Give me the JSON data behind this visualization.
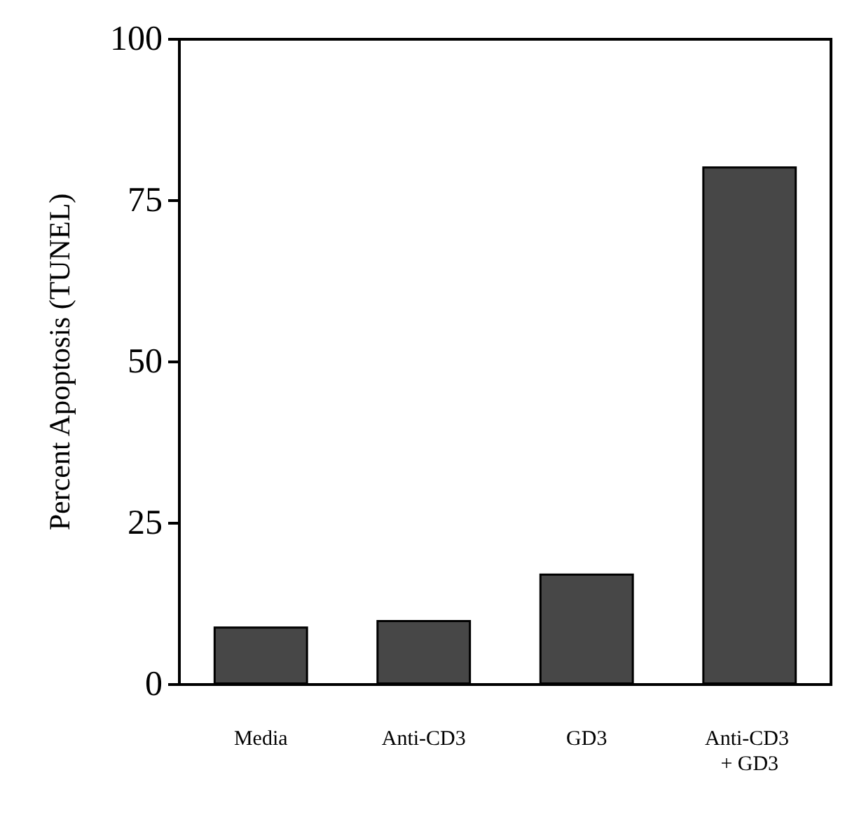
{
  "chart_data": {
    "type": "bar",
    "ylabel": "Percent Apoptosis (TUNEL)",
    "categories": [
      "Media",
      "Anti-CD3",
      "GD3",
      "Anti-CD3 + GD3"
    ],
    "values": [
      9,
      10,
      17.2,
      80.3
    ],
    "color": "#474747",
    "ylim": [
      0,
      100
    ],
    "yticks": [
      0,
      25,
      50,
      75,
      100
    ],
    "grid": false
  }
}
